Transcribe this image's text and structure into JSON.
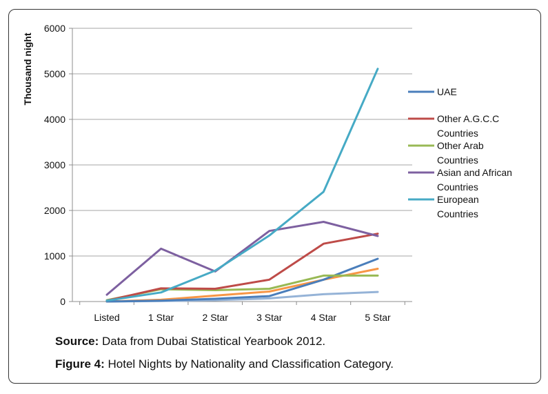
{
  "chart_data": {
    "type": "line",
    "ylabel": "Thousand night",
    "categories": [
      "Listed",
      "1 Star",
      "2 Star",
      "3 Star",
      "4 Star",
      "5 Star"
    ],
    "ylim": [
      0,
      6000
    ],
    "yticks": [
      0,
      1000,
      2000,
      3000,
      4000,
      5000,
      6000
    ],
    "grid": true,
    "legend_position": "right",
    "series": [
      {
        "name": "UAE",
        "color": "#4a7ebb",
        "values": [
          0,
          20,
          60,
          120,
          480,
          940
        ]
      },
      {
        "name": "Other A.G.C.C Countries",
        "color": "#be4b48",
        "values": [
          20,
          290,
          280,
          480,
          1270,
          1490
        ]
      },
      {
        "name": "Other Arab Countries",
        "color": "#98b954",
        "values": [
          30,
          270,
          250,
          280,
          570,
          570
        ]
      },
      {
        "name": "Asian and African Countries",
        "color": "#7d60a0",
        "values": [
          150,
          1160,
          660,
          1550,
          1750,
          1440
        ]
      },
      {
        "name": "European Countries",
        "color": "#46aac5",
        "values": [
          20,
          200,
          680,
          1450,
          2410,
          5110
        ]
      },
      {
        "name": "",
        "color": "#f79646",
        "values": [
          0,
          40,
          130,
          220,
          480,
          720
        ]
      },
      {
        "name": "",
        "color": "#95b3d7",
        "values": [
          0,
          10,
          30,
          70,
          160,
          210
        ]
      }
    ]
  },
  "caption": {
    "source_label": "Source:",
    "source_text": " Data from Dubai Statistical Yearbook 2012.",
    "figure_label": "Figure 4:",
    "figure_text": " Hotel Nights by Nationality and Classification Category."
  }
}
